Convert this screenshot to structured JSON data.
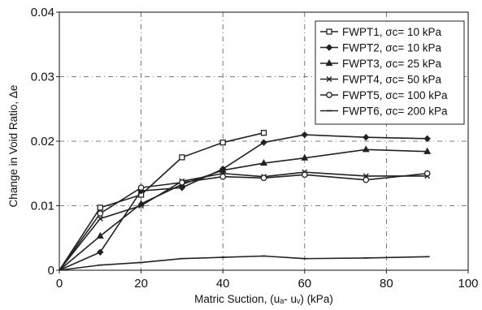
{
  "chart_data": {
    "type": "line",
    "xlabel": "Matric Suction, (uₐ- uᵥ) (kPa)",
    "ylabel": "Change in Void Ratio, Δe",
    "xlim": [
      0,
      100
    ],
    "ylim": [
      0,
      0.04
    ],
    "xticks": [
      0,
      20,
      40,
      60,
      80,
      100
    ],
    "yticks": [
      0,
      0.01,
      0.02,
      0.03,
      0.04
    ],
    "ytick_labels": [
      "0",
      "0.01",
      "0.02",
      "0.03",
      "0.04"
    ],
    "grid": true,
    "legend_position": "top-right",
    "series": [
      {
        "name": "FWPT1, σᴄ= 10 kPa",
        "marker": "square",
        "x": [
          0,
          10,
          20,
          30,
          40,
          50
        ],
        "y": [
          0,
          0.0097,
          0.0117,
          0.0175,
          0.0198,
          0.0213
        ]
      },
      {
        "name": "FWPT2, σᴄ= 10 kPa",
        "marker": "diamond",
        "x": [
          0,
          10,
          20,
          30,
          40,
          50,
          60,
          75,
          90
        ],
        "y": [
          0,
          0.0028,
          0.0123,
          0.0128,
          0.0157,
          0.0198,
          0.021,
          0.0206,
          0.0204
        ]
      },
      {
        "name": "FWPT3, σᴄ= 25 kPa",
        "marker": "triangle",
        "x": [
          0,
          10,
          20,
          30,
          40,
          50,
          60,
          75,
          90
        ],
        "y": [
          0,
          0.0053,
          0.0103,
          0.0133,
          0.0155,
          0.0166,
          0.0174,
          0.0187,
          0.0184
        ]
      },
      {
        "name": "FWPT4, σᴄ= 50 kPa",
        "marker": "x",
        "x": [
          0,
          10,
          20,
          30,
          40,
          50,
          60,
          75,
          90
        ],
        "y": [
          0,
          0.008,
          0.01,
          0.0138,
          0.015,
          0.0145,
          0.0152,
          0.0146,
          0.0146
        ]
      },
      {
        "name": "FWPT5, σᴄ= 100 kPa",
        "marker": "circle",
        "x": [
          0,
          10,
          20,
          30,
          40,
          50,
          60,
          75,
          90
        ],
        "y": [
          0,
          0.0088,
          0.0128,
          0.0136,
          0.0145,
          0.0143,
          0.0148,
          0.014,
          0.015
        ]
      },
      {
        "name": "FWPT6, σᴄ= 200 kPa",
        "marker": "dash",
        "x": [
          0,
          10,
          20,
          30,
          40,
          50,
          60,
          75,
          90
        ],
        "y": [
          0,
          0.0008,
          0.0012,
          0.0018,
          0.002,
          0.0022,
          0.0018,
          0.0019,
          0.0021
        ]
      }
    ]
  }
}
